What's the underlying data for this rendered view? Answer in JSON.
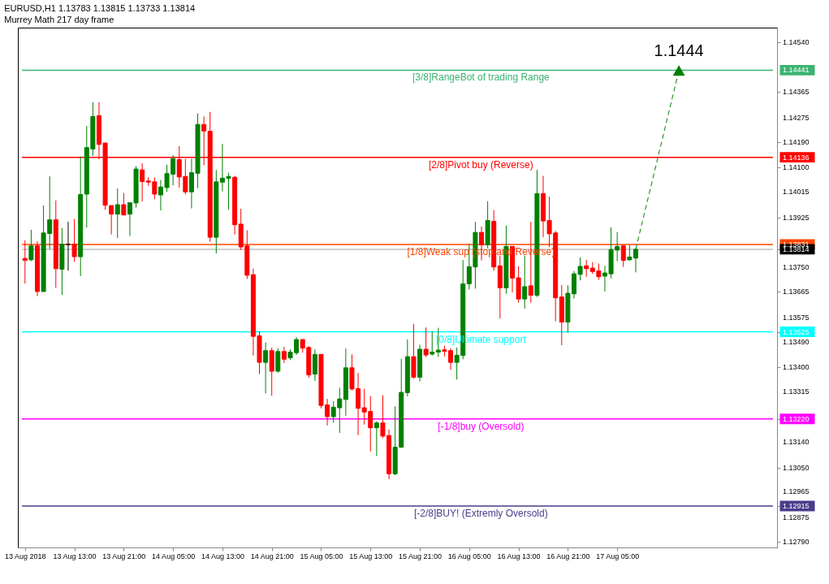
{
  "chart_data": {
    "type": "candlestick",
    "title": "EURUSD,H1  1.13783 1.13815 1.13733 1.13814",
    "subtitle": "Murrey Math 217 day frame",
    "x": [
      "2018-08-13T05:00",
      "2018-08-13T06:00",
      "2018-08-13T07:00",
      "2018-08-13T08:00",
      "2018-08-13T09:00",
      "2018-08-13T10:00",
      "2018-08-13T11:00",
      "2018-08-13T12:00",
      "2018-08-13T13:00",
      "2018-08-13T14:00",
      "2018-08-13T15:00",
      "2018-08-13T16:00",
      "2018-08-13T17:00",
      "2018-08-13T18:00",
      "2018-08-13T19:00",
      "2018-08-13T20:00",
      "2018-08-13T21:00",
      "2018-08-13T22:00",
      "2018-08-13T23:00",
      "2018-08-14T00:00",
      "2018-08-14T01:00",
      "2018-08-14T02:00",
      "2018-08-14T03:00",
      "2018-08-14T04:00",
      "2018-08-14T05:00",
      "2018-08-14T06:00",
      "2018-08-14T07:00",
      "2018-08-14T08:00",
      "2018-08-14T09:00",
      "2018-08-14T10:00",
      "2018-08-14T11:00",
      "2018-08-14T12:00",
      "2018-08-14T13:00",
      "2018-08-14T14:00",
      "2018-08-14T15:00",
      "2018-08-14T16:00",
      "2018-08-14T17:00",
      "2018-08-14T18:00",
      "2018-08-14T19:00",
      "2018-08-14T20:00",
      "2018-08-14T21:00",
      "2018-08-14T22:00",
      "2018-08-14T23:00",
      "2018-08-15T00:00",
      "2018-08-15T01:00",
      "2018-08-15T02:00",
      "2018-08-15T03:00",
      "2018-08-15T04:00",
      "2018-08-15T05:00",
      "2018-08-15T06:00",
      "2018-08-15T07:00",
      "2018-08-15T08:00",
      "2018-08-15T09:00",
      "2018-08-15T10:00",
      "2018-08-15T11:00",
      "2018-08-15T12:00",
      "2018-08-15T13:00",
      "2018-08-15T14:00",
      "2018-08-15T15:00",
      "2018-08-15T16:00",
      "2018-08-15T17:00",
      "2018-08-15T18:00",
      "2018-08-15T19:00",
      "2018-08-15T20:00",
      "2018-08-15T21:00",
      "2018-08-15T22:00",
      "2018-08-15T23:00",
      "2018-08-16T00:00",
      "2018-08-16T01:00",
      "2018-08-16T02:00",
      "2018-08-16T03:00",
      "2018-08-16T04:00",
      "2018-08-16T05:00",
      "2018-08-16T06:00",
      "2018-08-16T07:00",
      "2018-08-16T08:00",
      "2018-08-16T09:00",
      "2018-08-16T10:00",
      "2018-08-16T11:00",
      "2018-08-16T12:00",
      "2018-08-16T13:00",
      "2018-08-16T14:00",
      "2018-08-16T15:00",
      "2018-08-16T16:00",
      "2018-08-16T17:00",
      "2018-08-16T18:00",
      "2018-08-16T19:00",
      "2018-08-16T20:00",
      "2018-08-16T21:00",
      "2018-08-16T22:00",
      "2018-08-16T23:00",
      "2018-08-17T00:00",
      "2018-08-17T01:00",
      "2018-08-17T02:00",
      "2018-08-17T03:00",
      "2018-08-17T04:00",
      "2018-08-17T05:00",
      "2018-08-17T06:00",
      "2018-08-17T07:00",
      "2018-08-17T08:00"
    ],
    "ohlc": [
      [
        1.13782,
        1.13845,
        1.13694,
        1.13775
      ],
      [
        1.13777,
        1.13882,
        1.13772,
        1.13826
      ],
      [
        1.13826,
        1.13842,
        1.1365,
        1.13666
      ],
      [
        1.13666,
        1.13967,
        1.13666,
        1.13871
      ],
      [
        1.13869,
        1.14069,
        1.13815,
        1.13917
      ],
      [
        1.13917,
        1.13985,
        1.13679,
        1.13746
      ],
      [
        1.13744,
        1.13889,
        1.13654,
        1.13832
      ],
      [
        1.13831,
        1.1391,
        1.13739,
        1.13831
      ],
      [
        1.13832,
        1.1392,
        1.1377,
        1.13788
      ],
      [
        1.13788,
        1.14139,
        1.1372,
        1.14006
      ],
      [
        1.14007,
        1.14246,
        1.1389,
        1.1417
      ],
      [
        1.14165,
        1.14329,
        1.14141,
        1.14279
      ],
      [
        1.14282,
        1.14329,
        1.14129,
        1.14181
      ],
      [
        1.14186,
        1.14186,
        1.13952,
        1.13968
      ],
      [
        1.13967,
        1.13967,
        1.13866,
        1.13937
      ],
      [
        1.13937,
        1.14027,
        1.13853,
        1.1397
      ],
      [
        1.1397,
        1.14011,
        1.13934,
        1.13934
      ],
      [
        1.13937,
        1.13977,
        1.13861,
        1.13977
      ],
      [
        1.13976,
        1.14105,
        1.1396,
        1.14095
      ],
      [
        1.14092,
        1.14115,
        1.13981,
        1.14051
      ],
      [
        1.14053,
        1.14066,
        1.14036,
        1.14049
      ],
      [
        1.1405,
        1.14066,
        1.13989,
        1.14007
      ],
      [
        1.14004,
        1.14056,
        1.1395,
        1.14032
      ],
      [
        1.1403,
        1.1411,
        1.14015,
        1.14079
      ],
      [
        1.14077,
        1.14144,
        1.14038,
        1.14131
      ],
      [
        1.14128,
        1.14175,
        1.1403,
        1.14067
      ],
      [
        1.14069,
        1.14131,
        1.14007,
        1.14015
      ],
      [
        1.14015,
        1.14131,
        1.13957,
        1.14082
      ],
      [
        1.1408,
        1.1429,
        1.14028,
        1.14251
      ],
      [
        1.14251,
        1.14279,
        1.14108,
        1.14228
      ],
      [
        1.14227,
        1.14295,
        1.1384,
        1.13856
      ],
      [
        1.13856,
        1.14092,
        1.13799,
        1.1405
      ],
      [
        1.14049,
        1.14183,
        1.14017,
        1.14063
      ],
      [
        1.14062,
        1.14082,
        1.13952,
        1.14069
      ],
      [
        1.14066,
        1.14071,
        1.13866,
        1.139
      ],
      [
        1.13902,
        1.13956,
        1.13812,
        1.13822
      ],
      [
        1.13826,
        1.13881,
        1.1371,
        1.13723
      ],
      [
        1.13725,
        1.13746,
        1.13442,
        1.13509
      ],
      [
        1.13511,
        1.13527,
        1.13377,
        1.13418
      ],
      [
        1.13418,
        1.13488,
        1.13309,
        1.13459
      ],
      [
        1.13459,
        1.1347,
        1.13301,
        1.13387
      ],
      [
        1.13387,
        1.13467,
        1.13382,
        1.13456
      ],
      [
        1.13456,
        1.13472,
        1.13416,
        1.13429
      ],
      [
        1.13434,
        1.13464,
        1.13426,
        1.13454
      ],
      [
        1.13452,
        1.13506,
        1.13444,
        1.13498
      ],
      [
        1.13498,
        1.13498,
        1.13452,
        1.13468
      ],
      [
        1.1347,
        1.13475,
        1.13364,
        1.13374
      ],
      [
        1.13377,
        1.13464,
        1.13353,
        1.13446
      ],
      [
        1.13446,
        1.13446,
        1.13257,
        1.13267
      ],
      [
        1.13269,
        1.1329,
        1.13197,
        1.13228
      ],
      [
        1.13228,
        1.13282,
        1.13207,
        1.13261
      ],
      [
        1.13259,
        1.13329,
        1.13171,
        1.1329
      ],
      [
        1.13288,
        1.13467,
        1.13231,
        1.13399
      ],
      [
        1.13399,
        1.13446,
        1.13319,
        1.13325
      ],
      [
        1.13326,
        1.13381,
        1.13163,
        1.13257
      ],
      [
        1.13259,
        1.13326,
        1.132,
        1.13244
      ],
      [
        1.13246,
        1.133,
        1.13106,
        1.13189
      ],
      [
        1.13189,
        1.13212,
        1.1309,
        1.13206
      ],
      [
        1.13206,
        1.13303,
        1.13153,
        1.1316
      ],
      [
        1.13162,
        1.13183,
        1.13009,
        1.13028
      ],
      [
        1.13028,
        1.13264,
        1.13023,
        1.13121
      ],
      [
        1.13121,
        1.1343,
        1.13119,
        1.13313
      ],
      [
        1.13312,
        1.13498,
        1.13299,
        1.13438
      ],
      [
        1.13438,
        1.13553,
        1.13361,
        1.13366
      ],
      [
        1.13366,
        1.1348,
        1.13351,
        1.13464
      ],
      [
        1.13464,
        1.1354,
        1.13436,
        1.13444
      ],
      [
        1.13447,
        1.13527,
        1.13442,
        1.13454
      ],
      [
        1.13454,
        1.13539,
        1.13437,
        1.13461
      ],
      [
        1.13462,
        1.13476,
        1.13439,
        1.13457
      ],
      [
        1.13459,
        1.13468,
        1.13392,
        1.13418
      ],
      [
        1.13418,
        1.1347,
        1.13358,
        1.13443
      ],
      [
        1.13442,
        1.13776,
        1.13429,
        1.13693
      ],
      [
        1.13693,
        1.13831,
        1.13673,
        1.13753
      ],
      [
        1.13752,
        1.1391,
        1.13676,
        1.13873
      ],
      [
        1.13873,
        1.13894,
        1.13775,
        1.1383
      ],
      [
        1.1383,
        1.13982,
        1.13818,
        1.13915
      ],
      [
        1.13912,
        1.13951,
        1.13739,
        1.13752
      ],
      [
        1.13756,
        1.13792,
        1.13572,
        1.13679
      ],
      [
        1.13679,
        1.13897,
        1.13658,
        1.13824
      ],
      [
        1.13824,
        1.13824,
        1.13663,
        1.13713
      ],
      [
        1.13714,
        1.13754,
        1.13627,
        1.1364
      ],
      [
        1.1364,
        1.13792,
        1.13606,
        1.13683
      ],
      [
        1.13686,
        1.1391,
        1.13627,
        1.13653
      ],
      [
        1.13653,
        1.14092,
        1.13647,
        1.14009
      ],
      [
        1.14009,
        1.14071,
        1.13856,
        1.13913
      ],
      [
        1.13915,
        1.13998,
        1.13822,
        1.13868
      ],
      [
        1.13871,
        1.13878,
        1.13562,
        1.13644
      ],
      [
        1.13647,
        1.13689,
        1.13478,
        1.13559
      ],
      [
        1.13559,
        1.13688,
        1.13522,
        1.1366
      ],
      [
        1.13658,
        1.13738,
        1.13642,
        1.13728
      ],
      [
        1.13726,
        1.13785,
        1.13705,
        1.13754
      ],
      [
        1.13756,
        1.13777,
        1.13718,
        1.13746
      ],
      [
        1.13748,
        1.13769,
        1.13728,
        1.13736
      ],
      [
        1.13738,
        1.13764,
        1.13707,
        1.13718
      ],
      [
        1.1372,
        1.13756,
        1.13666,
        1.13731
      ],
      [
        1.13728,
        1.13891,
        1.13712,
        1.13813
      ],
      [
        1.13811,
        1.13874,
        1.13772,
        1.13824
      ],
      [
        1.13826,
        1.13829,
        1.13752,
        1.13775
      ],
      [
        1.13777,
        1.13829,
        1.13775,
        1.13787
      ],
      [
        1.13783,
        1.13815,
        1.13733,
        1.13814
      ]
    ],
    "colors": [
      "#ff0000",
      "#008000",
      "#ff0000",
      "#008000",
      "#008000",
      "#ff0000",
      "#008000",
      "#000000",
      "#ff0000",
      "#008000",
      "#008000",
      "#008000",
      "#ff0000",
      "#ff0000",
      "#ff0000",
      "#008000",
      "#ff0000",
      "#008000",
      "#008000",
      "#ff0000",
      "#ff0000",
      "#ff0000",
      "#008000",
      "#008000",
      "#008000",
      "#ff0000",
      "#ff0000",
      "#008000",
      "#008000",
      "#ff0000",
      "#ff0000",
      "#008000",
      "#008000",
      "#008000",
      "#ff0000",
      "#ff0000",
      "#ff0000",
      "#ff0000",
      "#ff0000",
      "#008000",
      "#ff0000",
      "#008000",
      "#ff0000",
      "#008000",
      "#008000",
      "#ff0000",
      "#ff0000",
      "#008000",
      "#ff0000",
      "#ff0000",
      "#008000",
      "#008000",
      "#008000",
      "#ff0000",
      "#ff0000",
      "#ff0000",
      "#ff0000",
      "#008000",
      "#ff0000",
      "#ff0000",
      "#008000",
      "#008000",
      "#008000",
      "#ff0000",
      "#008000",
      "#ff0000",
      "#008000",
      "#008000",
      "#ff0000",
      "#ff0000",
      "#008000",
      "#008000",
      "#008000",
      "#008000",
      "#ff0000",
      "#008000",
      "#ff0000",
      "#ff0000",
      "#008000",
      "#ff0000",
      "#ff0000",
      "#008000",
      "#ff0000",
      "#008000",
      "#ff0000",
      "#ff0000",
      "#ff0000",
      "#ff0000",
      "#008000",
      "#008000",
      "#008000",
      "#ff0000",
      "#ff0000",
      "#ff0000",
      "#008000",
      "#008000",
      "#008000",
      "#ff0000",
      "#008000",
      "#008000"
    ],
    "xlim": [
      "2018-08-13T04:30",
      "2018-08-18T06:15"
    ],
    "xticks": [
      {
        "value": "2018-08-13T05:00",
        "label": "13 Aug 2018"
      },
      {
        "value": "2018-08-13T13:00",
        "label": "13 Aug 13:00"
      },
      {
        "value": "2018-08-13T21:00",
        "label": "13 Aug 21:00"
      },
      {
        "value": "2018-08-14T05:00",
        "label": "14 Aug 05:00"
      },
      {
        "value": "2018-08-14T13:00",
        "label": "14 Aug 13:00"
      },
      {
        "value": "2018-08-14T21:00",
        "label": "14 Aug 21:00"
      },
      {
        "value": "2018-08-15T05:00",
        "label": "15 Aug 05:00"
      },
      {
        "value": "2018-08-15T13:00",
        "label": "15 Aug 13:00"
      },
      {
        "value": "2018-08-15T21:00",
        "label": "15 Aug 21:00"
      },
      {
        "value": "2018-08-16T05:00",
        "label": "16 Aug 05:00"
      },
      {
        "value": "2018-08-16T13:00",
        "label": "16 Aug 13:00"
      },
      {
        "value": "2018-08-16T21:00",
        "label": "16 Aug 21:00"
      },
      {
        "value": "2018-08-17T05:00",
        "label": "17 Aug 05:00"
      }
    ],
    "ylim": [
      1.1277,
      1.1459
    ],
    "yticks": [
      {
        "value": 1.1454,
        "label": "1.14540"
      },
      1.14441,
      1.14365,
      1.14275,
      {
        "value": 1.1419,
        "label": "1.14190"
      },
      1.14136,
      {
        "value": 1.141,
        "label": "1.14100"
      },
      1.14015,
      1.13925,
      1.13831,
      1.13814,
      {
        "value": 1.1375,
        "label": "1.13750"
      },
      1.13665,
      1.13575,
      1.13525,
      {
        "value": 1.1349,
        "label": "1.13490"
      },
      {
        "value": 1.134,
        "label": "1.13400"
      },
      1.13315,
      {
        "value": 1.1322,
        "label": "1.13220"
      },
      {
        "value": 1.1314,
        "label": "1.13140"
      },
      {
        "value": 1.1305,
        "label": "1.13050"
      },
      1.12965,
      1.12915,
      1.12875,
      {
        "value": 1.1279,
        "label": "1.12790"
      }
    ],
    "ref_lines": [
      {
        "axis": "y",
        "value": 1.14441,
        "label": "[3/8]RangeBot of trading Range",
        "color": "#3cb371"
      },
      {
        "axis": "y",
        "value": 1.14136,
        "label": "[2/8]Pivot buy (Reverse)",
        "color": "#ff0000"
      },
      {
        "axis": "y",
        "value": 1.13831,
        "label": "[1/8]Weak sup (stop and Reverse)",
        "color": "#ff4500"
      },
      {
        "axis": "y",
        "value": 1.13814,
        "label": null,
        "color": "#c0c0c0"
      },
      {
        "axis": "y",
        "value": 1.13525,
        "label": "[0/8]Ultimate support",
        "color": "#00ffff"
      },
      {
        "axis": "y",
        "value": 1.1322,
        "label": "[-1/8]buy (Oversold)",
        "color": "#ff00ff"
      },
      {
        "axis": "y",
        "value": 1.12915,
        "label": "[-2/8]BUY! (Extremly Oversold)",
        "color": "#483d8b"
      }
    ],
    "annotations": [
      {
        "text": "1.1444",
        "x": "2018-08-17T15:00",
        "y": 1.1444
      }
    ],
    "grid": false
  }
}
